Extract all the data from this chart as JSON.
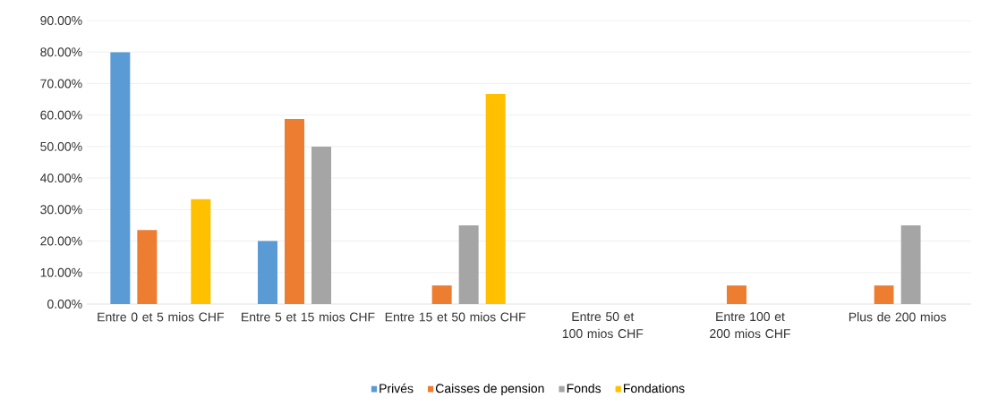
{
  "chart_data": {
    "type": "bar",
    "categories": [
      "Entre 0 et 5 mios CHF",
      "Entre 5 et 15 mios CHF",
      "Entre 15 et 50 mios CHF",
      "Entre 50 et 100 mios CHF",
      "Entre 100 et 200 mios CHF",
      "Plus de 200 mios"
    ],
    "series": [
      {
        "name": "Privés",
        "color": "#5b9bd5",
        "values": [
          80,
          20,
          0,
          0,
          0,
          0
        ]
      },
      {
        "name": "Caisses de pension",
        "color": "#ed7d31",
        "values": [
          23.5,
          58.8,
          5.9,
          0,
          5.9,
          5.9
        ]
      },
      {
        "name": "Fonds",
        "color": "#a5a5a5",
        "values": [
          0,
          50,
          25,
          0,
          0,
          25
        ]
      },
      {
        "name": "Fondations",
        "color": "#ffc000",
        "values": [
          33.3,
          0,
          66.7,
          0,
          0,
          0
        ]
      }
    ],
    "ylim": [
      0,
      90
    ],
    "yticks": [
      {
        "value": 0,
        "label": "0.00%"
      },
      {
        "value": 10,
        "label": "10.00%"
      },
      {
        "value": 20,
        "label": "20.00%"
      },
      {
        "value": 30,
        "label": "30.00%"
      },
      {
        "value": 40,
        "label": "40.00%"
      },
      {
        "value": 50,
        "label": "50.00%"
      },
      {
        "value": 60,
        "label": "60.00%"
      },
      {
        "value": 70,
        "label": "70.00%"
      },
      {
        "value": 80,
        "label": "80.00%"
      },
      {
        "value": 90,
        "label": "90.00%"
      }
    ],
    "grid": "y",
    "legend": "bottom"
  }
}
